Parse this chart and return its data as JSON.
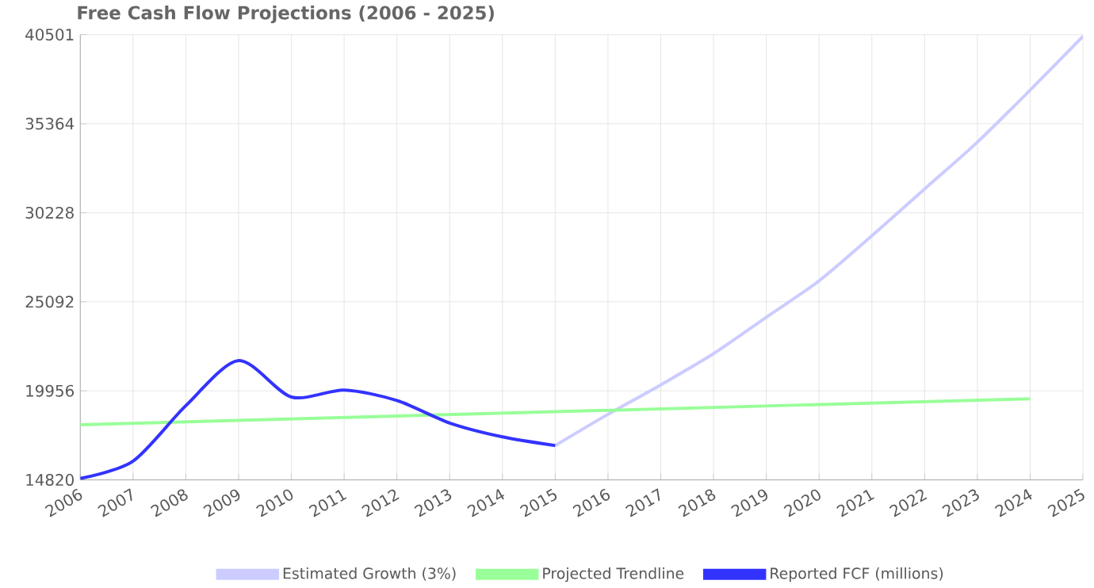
{
  "chart_data": {
    "type": "line",
    "title": "Free Cash Flow Projections (2006 - 2025)",
    "xlim": [
      2006,
      2025
    ],
    "xticks": [
      2006,
      2007,
      2008,
      2009,
      2010,
      2011,
      2012,
      2013,
      2014,
      2015,
      2016,
      2017,
      2018,
      2019,
      2020,
      2021,
      2022,
      2023,
      2024,
      2025
    ],
    "ylim": [
      14820,
      40501
    ],
    "yticks": [
      14820,
      19956,
      25092,
      30228,
      35364,
      40501
    ],
    "grid": true,
    "legend": "bottom",
    "marker": "none",
    "line_style": "solid",
    "series": [
      {
        "name": "Estimated Growth (3%)",
        "color": "#ccccff",
        "x": [
          2015,
          2016,
          2017,
          2018,
          2019,
          2020,
          2021,
          2022,
          2023,
          2024,
          2025
        ],
        "values": [
          16800,
          18600,
          20300,
          22100,
          24200,
          26300,
          28900,
          31600,
          34300,
          37300,
          40400
        ]
      },
      {
        "name": "Projected Trendline",
        "color": "#99ff99",
        "x": [
          2006,
          2024
        ],
        "values": [
          18000,
          19500
        ]
      },
      {
        "name": "Reported FCF (millions)",
        "color": "#3333ff",
        "x": [
          2006,
          2007,
          2008,
          2009,
          2010,
          2011,
          2012,
          2013,
          2014,
          2015
        ],
        "values": [
          14900,
          15900,
          19100,
          21700,
          19600,
          20000,
          19400,
          18100,
          17300,
          16800
        ]
      }
    ]
  }
}
